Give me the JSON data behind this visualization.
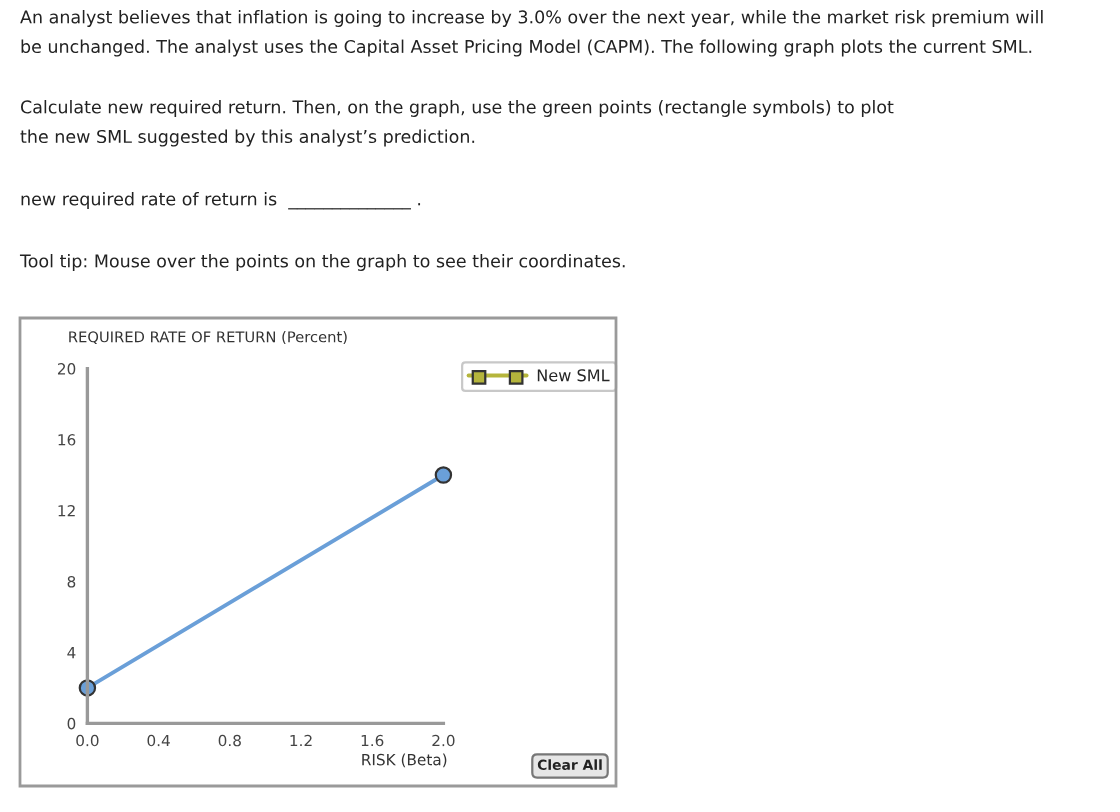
{
  "chart_data": {
    "type": "line",
    "xlabel": "RISK (Beta)",
    "ylabel": "REQUIRED RATE OF RETURN (Percent)",
    "series": [
      {
        "x": [
          0,
          2
        ],
        "values": [
          2,
          14
        ],
        "color": "#6a9fd8",
        "marker": "circle"
      },
      {
        "name": "New SML",
        "color": "#b5b53c",
        "marker": "square"
      }
    ],
    "xlim": [
      0,
      2
    ],
    "ylim": [
      0,
      20
    ],
    "xticks": [
      {
        "value": 0,
        "label": "0.0"
      },
      0.4,
      0.8,
      1.2,
      1.6,
      {
        "value": 2,
        "label": "2.0"
      }
    ],
    "yticks": [
      0,
      4,
      8,
      12,
      16,
      20
    ],
    "grid": false,
    "legend": "top right",
    "line_style": "solid",
    "annotations": [
      "An analyst believes that inflation is going to increase by 3.0% over the next year, while the market risk premium will\nbe unchanged. The analyst uses the Capital Asset Pricing Model (CAPM). The following graph plots the current SML.",
      "Calculate new required return. Then, on the graph, use the green points (rectangle symbols) to plot\nthe new SML suggested by this analyst’s prediction.",
      "new required rate of return is  ______________ .",
      "Tool tip: Mouse over the points on the graph to see their coordinates.",
      "Clear All"
    ]
  }
}
